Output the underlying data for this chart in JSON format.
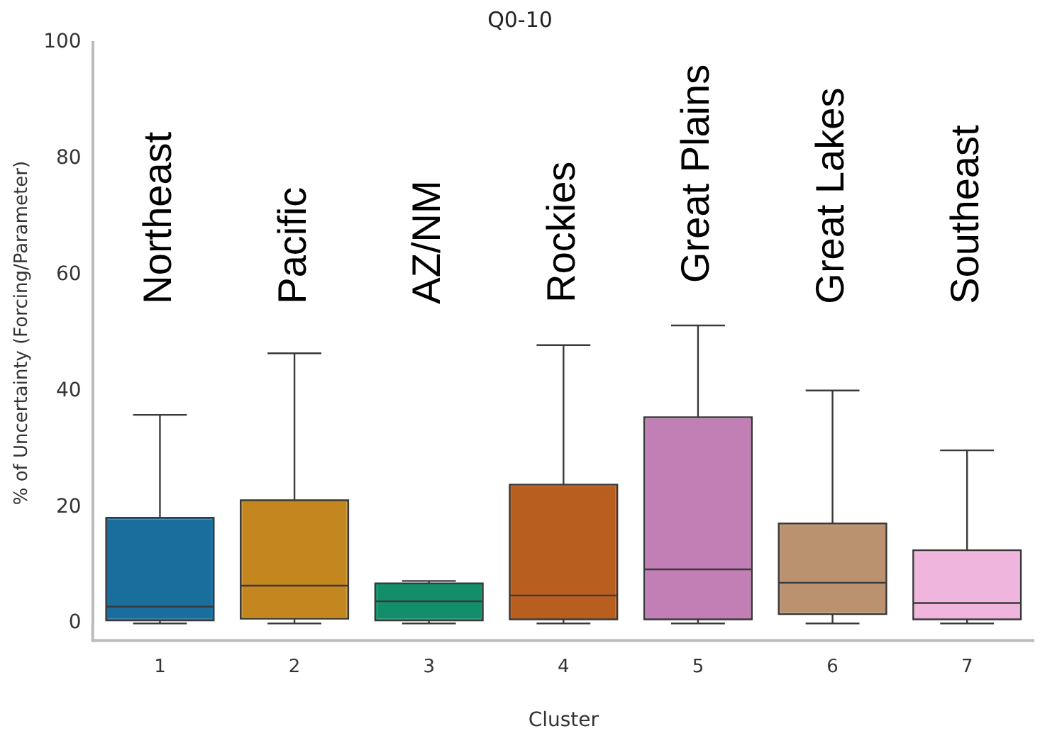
{
  "chart_data": {
    "type": "box",
    "title": "Q0-10",
    "xlabel": "Cluster",
    "ylabel": "% of Uncertainty (Forcing/Parameter)",
    "categories": [
      "1",
      "2",
      "3",
      "4",
      "5",
      "6",
      "7"
    ],
    "colors": [
      "#1a6e9e",
      "#c4861f",
      "#138e6b",
      "#b85e1e",
      "#c17fb5",
      "#bb9270",
      "#f0b5dd"
    ],
    "boxes": [
      {
        "low": 0,
        "q1": 0.5,
        "median": 2.9,
        "q3": 18.2,
        "high": 35.9
      },
      {
        "low": 0,
        "q1": 0.8,
        "median": 6.5,
        "q3": 21.2,
        "high": 46.5
      },
      {
        "low": 0,
        "q1": 0.5,
        "median": 3.8,
        "q3": 6.9,
        "high": 7.3
      },
      {
        "low": 0,
        "q1": 0.7,
        "median": 4.8,
        "q3": 23.9,
        "high": 47.9
      },
      {
        "low": 0,
        "q1": 0.7,
        "median": 9.3,
        "q3": 35.5,
        "high": 51.3
      },
      {
        "low": 0,
        "q1": 1.6,
        "median": 7,
        "q3": 17.2,
        "high": 40.1
      },
      {
        "low": 0,
        "q1": 0.7,
        "median": 3.5,
        "q3": 12.6,
        "high": 29.8
      }
    ],
    "annotations": [
      "Northeast",
      "Pacific",
      "AZ/NM",
      "Rockies",
      "Great Plains",
      "Great Lakes",
      "Southeast"
    ],
    "ylim": [
      0,
      100
    ],
    "yticks": [
      0,
      20,
      40,
      60,
      80,
      100
    ],
    "grid": false,
    "legend": false
  }
}
